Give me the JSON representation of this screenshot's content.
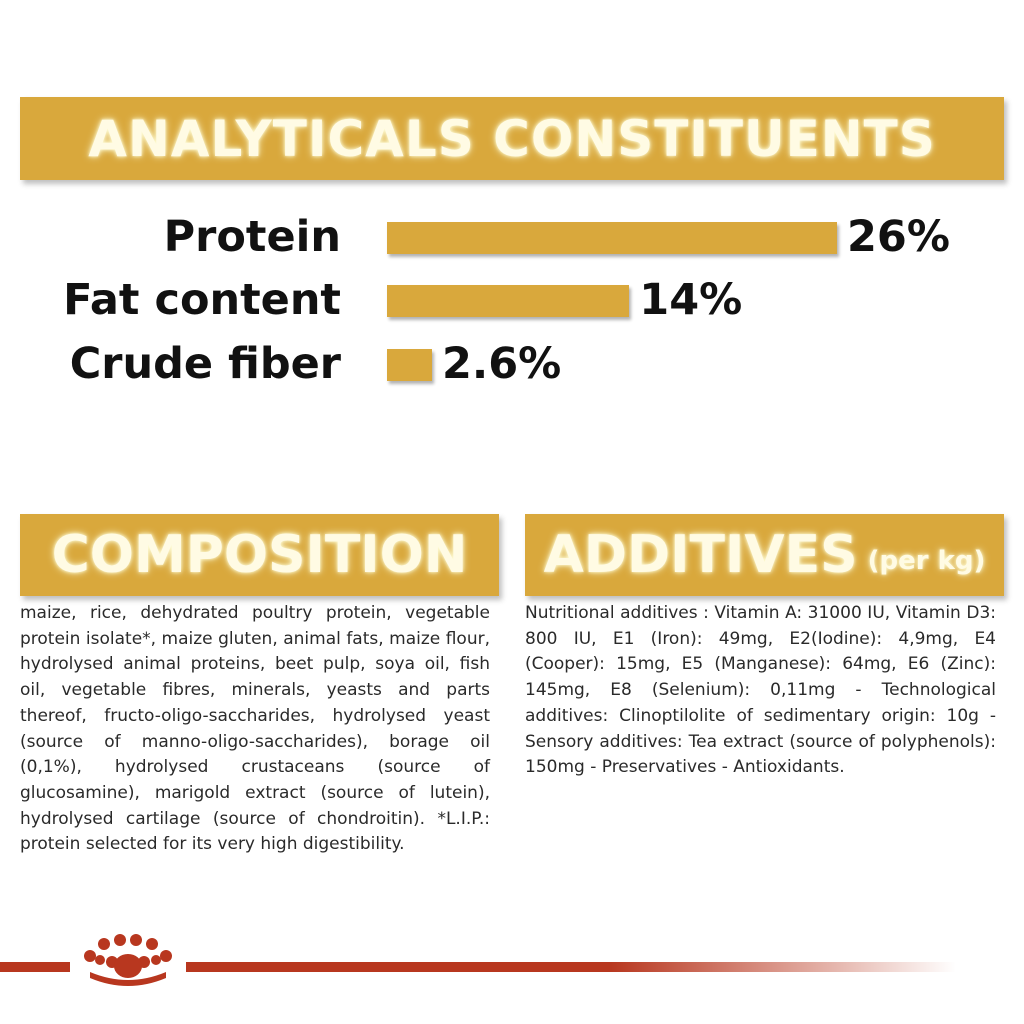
{
  "analyticals": {
    "title": "ANALYTICALS CONSTITUENTS",
    "rows": [
      {
        "label": "Protein",
        "value": "26%",
        "percent": 26
      },
      {
        "label": "Fat content",
        "value": "14%",
        "percent": 14
      },
      {
        "label": "Crude fiber",
        "value": "2.6%",
        "percent": 2.6
      }
    ]
  },
  "composition": {
    "title": "COMPOSITION",
    "text": "maize, rice, dehydrated poultry protein, vegetable protein isolate*, maize gluten, animal fats, maize flour, hydrolysed animal proteins, beet pulp, soya oil, fish oil, vegetable fibres, minerals, yeasts and parts thereof, fructo-oligo-saccharides, hydrolysed yeast (source of manno-oligo-saccharides), borage oil (0,1%), hydrolysed crustaceans (source of glucosamine), marigold extract (source of lutein), hydrolysed cartilage (source of chondroitin). *L.I.P.: protein selected for its very high digestibility."
  },
  "additives": {
    "title": "ADDITIVES",
    "subtitle": "(per kg)",
    "text": "Nutritional additives : Vitamin A: 31000 IU, Vitamin D3: 800 IU, E1 (Iron): 49mg, E2(Iodine): 4,9mg, E4 (Cooper): 15mg, E5 (Manganese): 64mg, E6 (Zinc): 145mg, E8 (Selenium): 0,11mg - Technological additives: Clinoptilolite of sedimentary origin: 10g - Sensory additives: Tea extract (source of polyphenols): 150mg - Preservatives - Antioxidants."
  },
  "footer": {
    "logo_icon": "crown-icon",
    "accent_color": "#b8371f"
  },
  "colors": {
    "banner": "#d9a83c",
    "banner_text": "#fffbe4",
    "bar": "#d9a83c"
  }
}
